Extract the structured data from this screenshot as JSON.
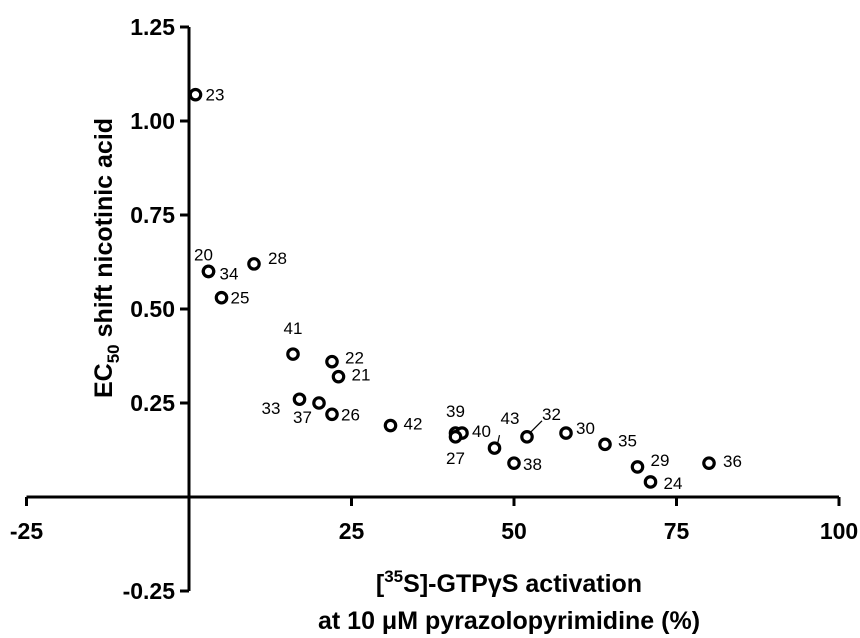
{
  "chart_data": {
    "type": "scatter",
    "xlabel_line1": "[35S]-GTPγS activation",
    "xlabel_line2": "at 10 μM pyrazolopyrimidine (%)",
    "ylabel": "EC50 shift nicotinic acid",
    "xlim": [
      -25,
      100
    ],
    "ylim": [
      -0.25,
      1.25
    ],
    "x_ticks": [
      "-25",
      "25",
      "50",
      "75",
      "100"
    ],
    "y_ticks": [
      "-0.25",
      "0.25",
      "0.50",
      "0.75",
      "1.00",
      "1.25"
    ],
    "points": [
      {
        "label": "23",
        "x": 1,
        "y": 1.07
      },
      {
        "label": "20",
        "x": 3,
        "y": 0.6
      },
      {
        "label": "34",
        "x": 3,
        "y": 0.6
      },
      {
        "label": "28",
        "x": 10,
        "y": 0.62
      },
      {
        "label": "25",
        "x": 5,
        "y": 0.53
      },
      {
        "label": "41",
        "x": 16,
        "y": 0.38
      },
      {
        "label": "22",
        "x": 22,
        "y": 0.36
      },
      {
        "label": "21",
        "x": 23,
        "y": 0.32
      },
      {
        "label": "33",
        "x": 17,
        "y": 0.26
      },
      {
        "label": "37",
        "x": 20,
        "y": 0.25
      },
      {
        "label": "26",
        "x": 22,
        "y": 0.22
      },
      {
        "label": "42",
        "x": 31,
        "y": 0.19
      },
      {
        "label": "39",
        "x": 41,
        "y": 0.17
      },
      {
        "label": "40",
        "x": 42,
        "y": 0.17
      },
      {
        "label": "27",
        "x": 41,
        "y": 0.16
      },
      {
        "label": "43",
        "x": 47,
        "y": 0.13
      },
      {
        "label": "32",
        "x": 52,
        "y": 0.16
      },
      {
        "label": "38",
        "x": 50,
        "y": 0.09
      },
      {
        "label": "30",
        "x": 58,
        "y": 0.17
      },
      {
        "label": "35",
        "x": 64,
        "y": 0.14
      },
      {
        "label": "29",
        "x": 69,
        "y": 0.08
      },
      {
        "label": "24",
        "x": 71,
        "y": 0.04
      },
      {
        "label": "36",
        "x": 80,
        "y": 0.09
      }
    ]
  }
}
